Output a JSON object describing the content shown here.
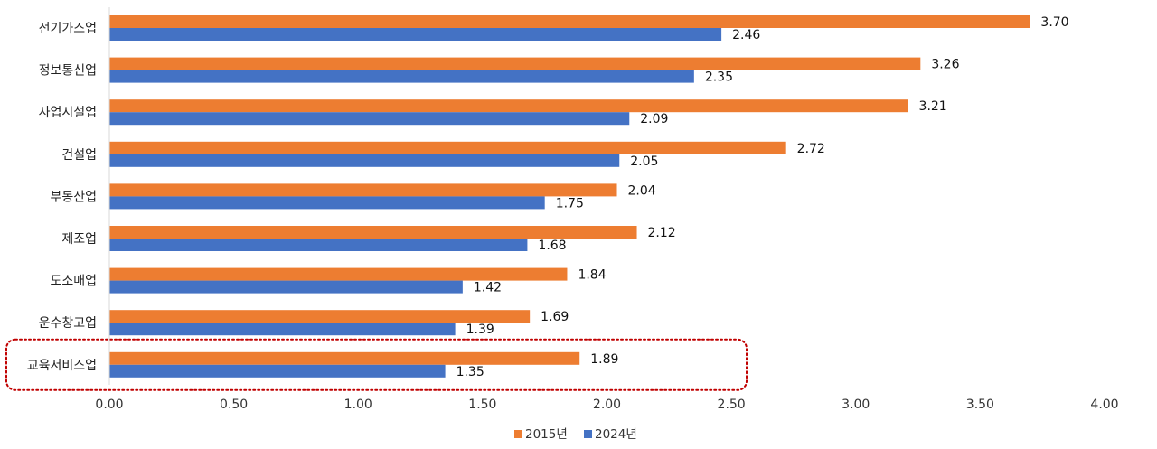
{
  "chart_data": {
    "type": "bar",
    "orientation": "horizontal",
    "categories": [
      "전기가스업",
      "정보통신업",
      "사업시설업",
      "건설업",
      "부동산업",
      "제조업",
      "도소매업",
      "운수창고업",
      "교육서비스업"
    ],
    "series": [
      {
        "name": "2015년",
        "values": [
          3.7,
          3.26,
          3.21,
          2.72,
          2.04,
          2.12,
          1.84,
          1.69,
          1.89
        ],
        "color": "#ED7D31"
      },
      {
        "name": "2024년",
        "values": [
          2.46,
          2.35,
          2.09,
          2.05,
          1.75,
          1.68,
          1.42,
          1.39,
          1.35
        ],
        "color": "#4472C4"
      }
    ],
    "xlim": [
      0,
      4
    ],
    "x_ticks": [
      "0.00",
      "0.50",
      "1.00",
      "1.50",
      "2.00",
      "2.50",
      "3.00",
      "3.50",
      "4.00"
    ],
    "data_labels": true,
    "grid": false,
    "legend": "bottom",
    "highlight": {
      "category": "교육서비스업",
      "style": "dotted-rounded-box",
      "color": "#C00000"
    }
  }
}
